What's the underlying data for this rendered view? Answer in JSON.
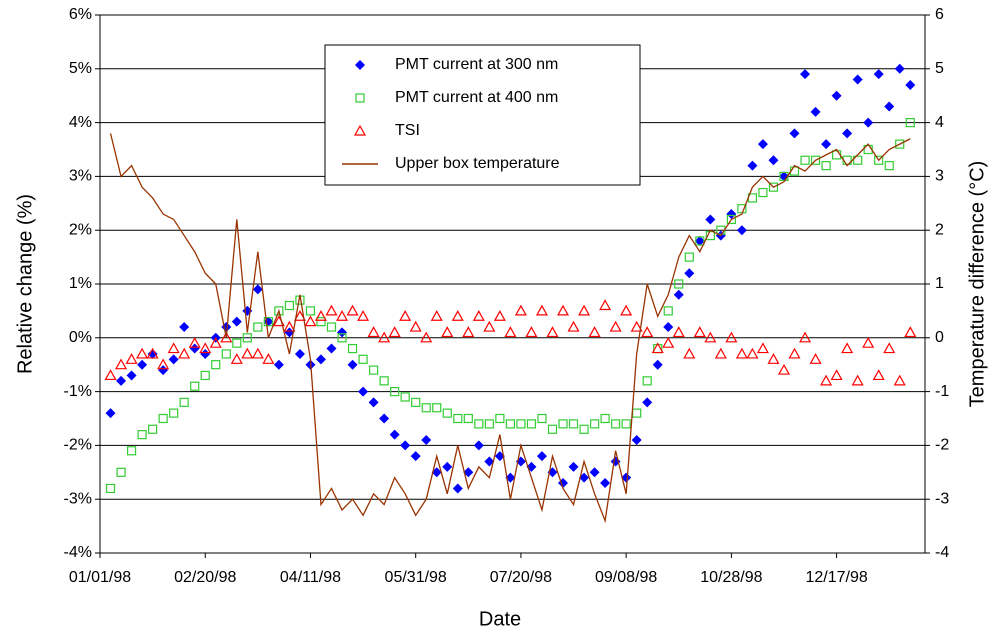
{
  "chart_data": {
    "type": "scatter",
    "x_label": "Date",
    "y_label": "Relative change (%)",
    "y2_label": "Temperature difference (°C)",
    "x": [
      5,
      10,
      15,
      20,
      25,
      30,
      35,
      40,
      45,
      50,
      55,
      60,
      65,
      70,
      75,
      80,
      85,
      90,
      95,
      100,
      105,
      110,
      115,
      120,
      125,
      130,
      135,
      140,
      145,
      150,
      155,
      160,
      165,
      170,
      175,
      180,
      185,
      190,
      195,
      200,
      205,
      210,
      215,
      220,
      225,
      230,
      235,
      240,
      245,
      250,
      255,
      260,
      265,
      270,
      275,
      280,
      285,
      290,
      295,
      300,
      305,
      310,
      315,
      320,
      325,
      330,
      335,
      340,
      345,
      350,
      355,
      360,
      365,
      370,
      375,
      380,
      385
    ],
    "xlim": [
      0,
      392
    ],
    "xticks": [
      {
        "value": 0,
        "label": "01/01/98"
      },
      {
        "value": 50,
        "label": "02/20/98"
      },
      {
        "value": 100,
        "label": "04/11/98"
      },
      {
        "value": 150,
        "label": "05/31/98"
      },
      {
        "value": 200,
        "label": "07/20/98"
      },
      {
        "value": 250,
        "label": "09/08/98"
      },
      {
        "value": 300,
        "label": "10/28/98"
      },
      {
        "value": 350,
        "label": "12/17/98"
      }
    ],
    "ylim": [
      -4,
      6
    ],
    "yticks": [
      {
        "value": -4,
        "label": "-4%"
      },
      {
        "value": -3,
        "label": "-3%"
      },
      {
        "value": -2,
        "label": "-2%"
      },
      {
        "value": -1,
        "label": "-1%"
      },
      {
        "value": 0,
        "label": "0%"
      },
      {
        "value": 1,
        "label": "1%"
      },
      {
        "value": 2,
        "label": "2%"
      },
      {
        "value": 3,
        "label": "3%"
      },
      {
        "value": 4,
        "label": "4%"
      },
      {
        "value": 5,
        "label": "5%"
      },
      {
        "value": 6,
        "label": "6%"
      }
    ],
    "y2lim": [
      -4,
      6
    ],
    "y2ticks": [
      -4,
      -3,
      -2,
      -1,
      0,
      1,
      2,
      3,
      4,
      5,
      6
    ],
    "grid": true,
    "series": [
      {
        "name": "PMT current at 300 nm",
        "color": "#0000ff",
        "marker": "diamond",
        "values": [
          -1.4,
          -0.8,
          -0.7,
          -0.5,
          -0.3,
          -0.6,
          -0.4,
          0.2,
          -0.2,
          -0.3,
          0.0,
          0.2,
          0.3,
          0.5,
          0.9,
          0.3,
          -0.5,
          0.1,
          -0.3,
          -0.5,
          -0.4,
          -0.2,
          0.1,
          -0.5,
          -1.0,
          -1.2,
          -1.5,
          -1.8,
          -2.0,
          -2.2,
          -1.9,
          -2.5,
          -2.4,
          -2.8,
          -2.5,
          -2.0,
          -2.3,
          -2.2,
          -2.6,
          -2.3,
          -2.4,
          -2.2,
          -2.5,
          -2.7,
          -2.4,
          -2.6,
          -2.5,
          -2.7,
          -2.3,
          -2.6,
          -1.9,
          -1.2,
          -0.5,
          0.2,
          0.8,
          1.2,
          1.8,
          2.2,
          1.9,
          2.3,
          2.0,
          3.2,
          3.6,
          3.3,
          3.0,
          3.8,
          4.9,
          4.2,
          3.6,
          4.5,
          3.8,
          4.8,
          4.0,
          4.9,
          4.3,
          5.0,
          4.7
        ]
      },
      {
        "name": "PMT current at 400 nm",
        "color": "#33cc33",
        "marker": "square",
        "values": [
          -2.8,
          -2.5,
          -2.1,
          -1.8,
          -1.7,
          -1.5,
          -1.4,
          -1.2,
          -0.9,
          -0.7,
          -0.5,
          -0.3,
          -0.1,
          0.0,
          0.2,
          0.3,
          0.5,
          0.6,
          0.7,
          0.5,
          0.3,
          0.2,
          0.0,
          -0.2,
          -0.4,
          -0.6,
          -0.8,
          -1.0,
          -1.1,
          -1.2,
          -1.3,
          -1.3,
          -1.4,
          -1.5,
          -1.5,
          -1.6,
          -1.6,
          -1.5,
          -1.6,
          -1.6,
          -1.6,
          -1.5,
          -1.7,
          -1.6,
          -1.6,
          -1.7,
          -1.6,
          -1.5,
          -1.6,
          -1.6,
          -1.4,
          -0.8,
          -0.2,
          0.5,
          1.0,
          1.5,
          1.8,
          1.9,
          2.0,
          2.2,
          2.4,
          2.6,
          2.7,
          2.8,
          3.0,
          3.1,
          3.3,
          3.3,
          3.2,
          3.4,
          3.3,
          3.3,
          3.5,
          3.3,
          3.2,
          3.6,
          4.0
        ]
      },
      {
        "name": "TSI",
        "color": "#ff0000",
        "marker": "triangle",
        "values": [
          -0.7,
          -0.5,
          -0.4,
          -0.3,
          -0.3,
          -0.5,
          -0.2,
          -0.3,
          -0.1,
          -0.2,
          -0.1,
          0.0,
          -0.4,
          -0.3,
          -0.3,
          -0.4,
          0.3,
          0.2,
          0.4,
          0.3,
          0.4,
          0.5,
          0.4,
          0.5,
          0.4,
          0.1,
          0.0,
          0.1,
          0.4,
          0.2,
          0.0,
          0.4,
          0.1,
          0.4,
          0.1,
          0.4,
          0.2,
          0.4,
          0.1,
          0.5,
          0.1,
          0.5,
          0.1,
          0.5,
          0.2,
          0.5,
          0.1,
          0.6,
          0.2,
          0.5,
          0.2,
          0.1,
          -0.2,
          -0.1,
          0.1,
          -0.3,
          0.1,
          0.0,
          -0.3,
          0.0,
          -0.3,
          -0.3,
          -0.2,
          -0.4,
          -0.6,
          -0.3,
          0.0,
          -0.4,
          -0.8,
          -0.7,
          -0.2,
          -0.8,
          -0.1,
          -0.7,
          -0.2,
          -0.8,
          0.1
        ]
      },
      {
        "name": "Upper box temperature",
        "color": "#993300",
        "marker": "line",
        "axis": "y2",
        "values": [
          3.8,
          3.0,
          3.2,
          2.8,
          2.6,
          2.3,
          2.2,
          1.9,
          1.6,
          1.2,
          1.0,
          0.0,
          2.2,
          0.1,
          1.6,
          0.0,
          0.5,
          -0.3,
          0.8,
          -0.4,
          -3.1,
          -2.8,
          -3.2,
          -3.0,
          -3.3,
          -2.9,
          -3.1,
          -2.6,
          -2.9,
          -3.3,
          -3.0,
          -2.2,
          -2.9,
          -2.0,
          -2.8,
          -2.4,
          -2.6,
          -1.8,
          -3.0,
          -2.0,
          -2.6,
          -3.2,
          -2.2,
          -2.8,
          -3.1,
          -2.3,
          -2.9,
          -3.4,
          -2.1,
          -2.9,
          -0.3,
          1.0,
          0.4,
          0.8,
          1.5,
          1.9,
          1.6,
          2.0,
          1.9,
          2.2,
          2.3,
          2.8,
          3.0,
          2.8,
          2.9,
          3.2,
          3.1,
          3.3,
          3.4,
          3.5,
          3.2,
          3.4,
          3.6,
          3.3,
          3.5,
          3.6,
          3.7
        ]
      }
    ]
  }
}
